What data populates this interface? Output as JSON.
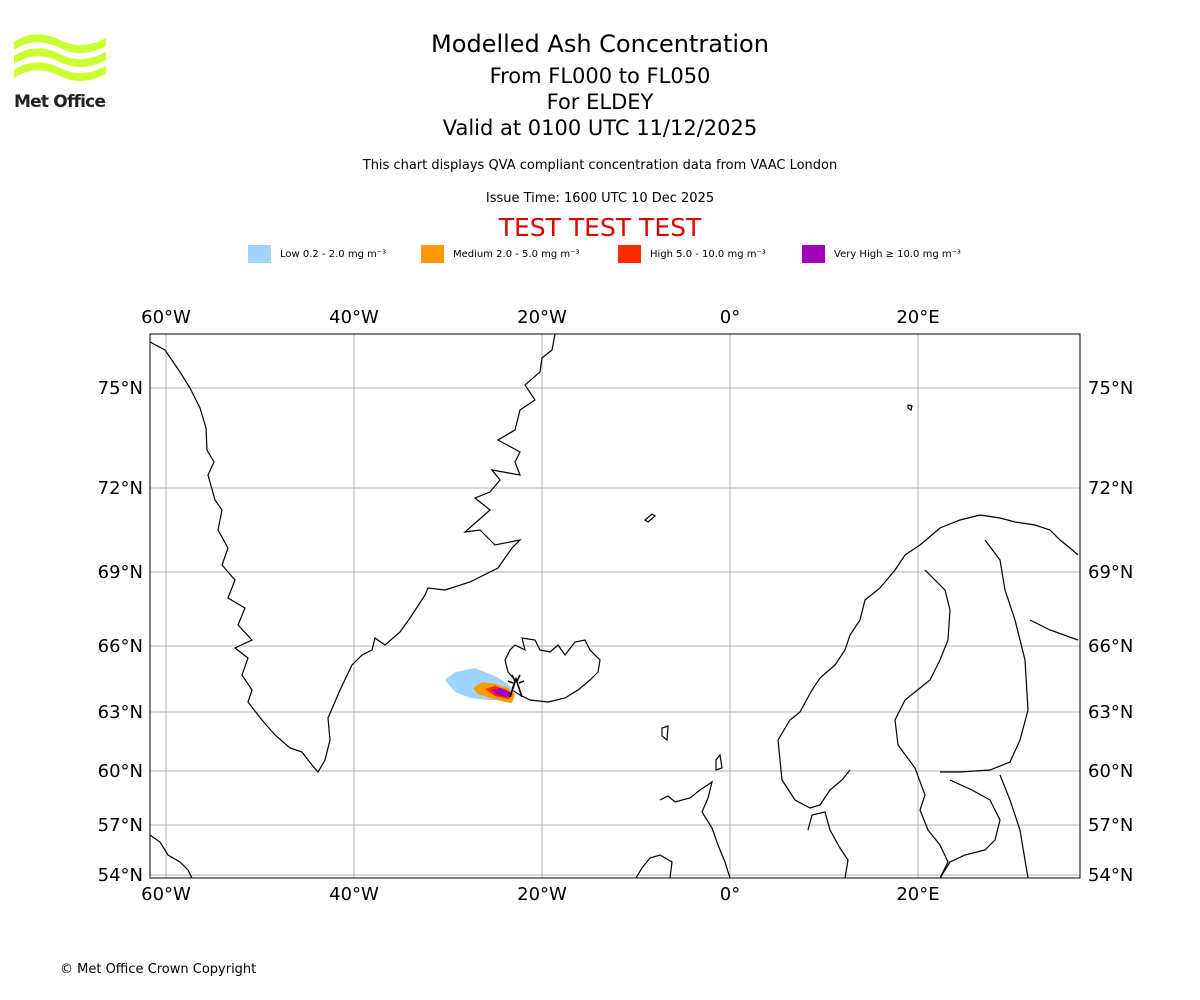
{
  "header": {
    "title": "Modelled Ash Concentration",
    "flight_levels": "From FL000 to FL050",
    "location": "For ELDEY",
    "valid_time": "Valid at 0100 UTC 11/12/2025",
    "description": "This chart displays QVA compliant concentration data from VAAC London",
    "issue_time": "Issue Time: 1600 UTC 10 Dec 2025",
    "test_banner": "TEST TEST TEST",
    "test_color": "#e00000"
  },
  "logo": {
    "text": "Met Office",
    "icon": "met-office-waves-logo",
    "color": "#ccff33"
  },
  "legend": [
    {
      "label": "Low 0.2 - 2.0 mg m⁻³",
      "color": "#a0d4ff"
    },
    {
      "label": "Medium 2.0 - 5.0 mg m⁻³",
      "color": "#ff9900"
    },
    {
      "label": "High 5.0 - 10.0 mg m⁻³",
      "color": "#ff2a00"
    },
    {
      "label": "Very High ≥ 10.0 mg m⁻³",
      "color": "#a000b8"
    }
  ],
  "map": {
    "lon_ticks": [
      {
        "label": "60°W",
        "value": -60
      },
      {
        "label": "40°W",
        "value": -40
      },
      {
        "label": "20°W",
        "value": -20
      },
      {
        "label": "0°",
        "value": 0
      },
      {
        "label": "20°E",
        "value": 20
      }
    ],
    "lat_ticks": [
      {
        "label": "75°N",
        "value": 75
      },
      {
        "label": "72°N",
        "value": 72
      },
      {
        "label": "69°N",
        "value": 69
      },
      {
        "label": "66°N",
        "value": 66
      },
      {
        "label": "63°N",
        "value": 63
      },
      {
        "label": "60°N",
        "value": 60
      },
      {
        "label": "57°N",
        "value": 57
      },
      {
        "label": "54°N",
        "value": 54
      }
    ],
    "grid": true,
    "volcano_icon": "volcano-marker-icon"
  },
  "footer": {
    "copyright": "© Met Office Crown Copyright"
  }
}
